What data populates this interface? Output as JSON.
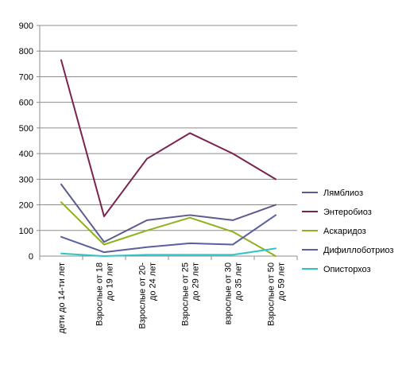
{
  "chart_data": {
    "type": "line",
    "title": "",
    "xlabel": "",
    "ylabel": "",
    "ylim": [
      0,
      900
    ],
    "yticks": [
      0,
      100,
      200,
      300,
      400,
      500,
      600,
      700,
      800,
      900
    ],
    "grid": "horizontal",
    "legend_position": "right",
    "categories": [
      [
        "дети до 14-ти лет"
      ],
      [
        "Взрослые от 18",
        "до 19 лет"
      ],
      [
        "Взрослые от 20-",
        "до 24 лет"
      ],
      [
        "Взрослые от 25",
        "до 29 лет"
      ],
      [
        "взрослые от 30",
        "до 35 лет"
      ],
      [
        "Взрослые от 50",
        "до 59 лет"
      ]
    ],
    "series": [
      {
        "name": "Лямблиоз",
        "color": "#5b5b8f",
        "values": [
          280,
          55,
          140,
          160,
          140,
          200
        ]
      },
      {
        "name": "Энтеробиоз",
        "color": "#7b2350",
        "values": [
          765,
          155,
          380,
          480,
          400,
          300
        ]
      },
      {
        "name": "Аскаридоз",
        "color": "#8db31c",
        "values": [
          210,
          45,
          100,
          150,
          95,
          0
        ]
      },
      {
        "name": "Дифиллоботриоз",
        "color": "#5b5fa0",
        "values": [
          75,
          15,
          35,
          50,
          45,
          160
        ]
      },
      {
        "name": "Описторхоз",
        "color": "#2ec4c4",
        "values": [
          10,
          0,
          5,
          5,
          5,
          30
        ]
      }
    ]
  }
}
